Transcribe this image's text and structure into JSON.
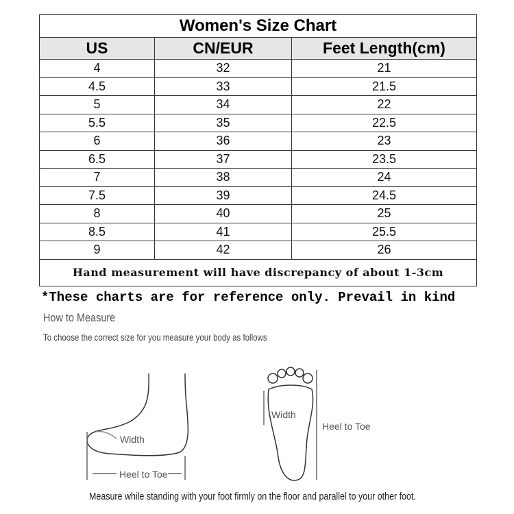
{
  "title": "Women's Size Chart",
  "headers": [
    "US",
    "CN/EUR",
    "Feet Length(cm)"
  ],
  "rows": [
    [
      "4",
      "32",
      "21"
    ],
    [
      "4.5",
      "33",
      "21.5"
    ],
    [
      "5",
      "34",
      "22"
    ],
    [
      "5.5",
      "35",
      "22.5"
    ],
    [
      "6",
      "36",
      "23"
    ],
    [
      "6.5",
      "37",
      "23.5"
    ],
    [
      "7",
      "38",
      "24"
    ],
    [
      "7.5",
      "39",
      "24.5"
    ],
    [
      "8",
      "40",
      "25"
    ],
    [
      "8.5",
      "41",
      "25.5"
    ],
    [
      "9",
      "42",
      "26"
    ]
  ],
  "note": "Hand measurement will have discrepancy of about 1-3cm",
  "reference": "*These charts are for reference only. Prevail in kind",
  "how_to": {
    "title": "How to Measure",
    "subtitle": "To choose the correct size for you measure your body as follows",
    "side_width": "Width",
    "side_length": "Heel to Toe",
    "sole_width": "Width",
    "sole_length": "Heel to Toe",
    "caption": "Measure while standing with your foot firmly on the floor and parallel to your other foot."
  }
}
